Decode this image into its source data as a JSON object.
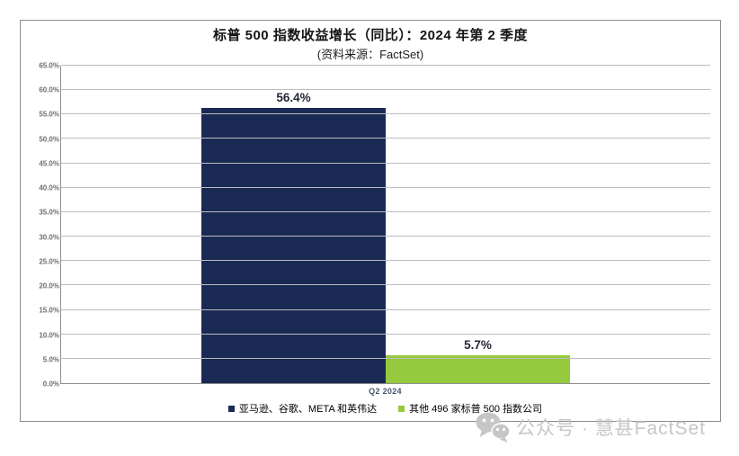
{
  "chart_data": {
    "type": "bar",
    "title": "标普 500 指数收益增长（同比）：2024 年第 2 季度",
    "subtitle": "(资料来源：FactSet)",
    "categories": [
      "Q2 2024"
    ],
    "series": [
      {
        "name": "亚马逊、谷歌、META 和英伟达",
        "values": [
          56.4
        ],
        "data_label": "56.4%",
        "color": "#1b2a55"
      },
      {
        "name": "其他 496 家标普 500 指数公司",
        "values": [
          5.7
        ],
        "data_label": "5.7%",
        "color": "#95c93e"
      }
    ],
    "xlabel": "",
    "ylabel": "",
    "ylim": [
      0,
      65
    ],
    "ytick_step": 5,
    "yticks": [
      "0.0%",
      "5.0%",
      "10.0%",
      "15.0%",
      "20.0%",
      "25.0%",
      "30.0%",
      "35.0%",
      "40.0%",
      "45.0%",
      "50.0%",
      "55.0%",
      "60.0%",
      "65.0%"
    ],
    "grid": true,
    "legend_position": "bottom"
  },
  "watermark": {
    "text": "公众号 · 慧甚FactSet",
    "icon": "wechat-icon",
    "color": "#c6c6c6"
  },
  "colors": {
    "series1": "#1b2a55",
    "series2": "#95c93e",
    "gridline": "#bdbdbd",
    "axis_line": "#8e8e8e",
    "box_border": "#8c8c8c",
    "data_label": "#242837",
    "tick_label": "#6f6f6f",
    "category_label": "#47536e"
  }
}
